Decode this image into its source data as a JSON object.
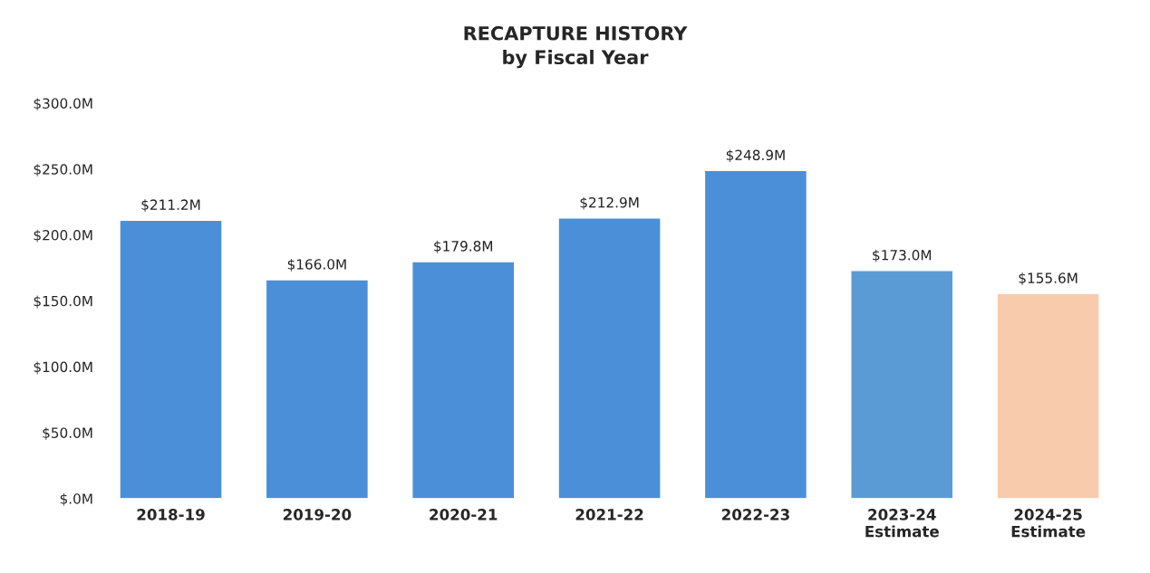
{
  "chart_data": {
    "type": "bar",
    "title": "RECAPTURE HISTORY\nby Fiscal Year",
    "categories": [
      "2018-19",
      "2019-20",
      "2020-21",
      "2021-22",
      "2022-23",
      "2023-24\nEstimate",
      "2024-25\nEstimate"
    ],
    "values": [
      211.2,
      166.0,
      179.8,
      212.9,
      248.9,
      173.0,
      155.6
    ],
    "value_labels": [
      "$211.2M",
      "$166.0M",
      "$179.8M",
      "$212.9M",
      "$248.9M",
      "$173.0M",
      "$155.6M"
    ],
    "colors": [
      "#4a8fd8",
      "#4a8fd8",
      "#4a8fd8",
      "#4a8fd8",
      "#4a8fd8",
      "#5b9bd5",
      "#f8cbad"
    ],
    "ylim": [
      0,
      300
    ],
    "yticks": [
      {
        "value": 0,
        "label": "$.0M"
      },
      {
        "value": 50,
        "label": "$50.0M"
      },
      {
        "value": 100,
        "label": "$100.0M"
      },
      {
        "value": 150,
        "label": "$150.0M"
      },
      {
        "value": 200,
        "label": "$200.0M"
      },
      {
        "value": 250,
        "label": "$250.0M"
      },
      {
        "value": 300,
        "label": "$300.0M"
      }
    ],
    "grid": false,
    "legend": false
  }
}
